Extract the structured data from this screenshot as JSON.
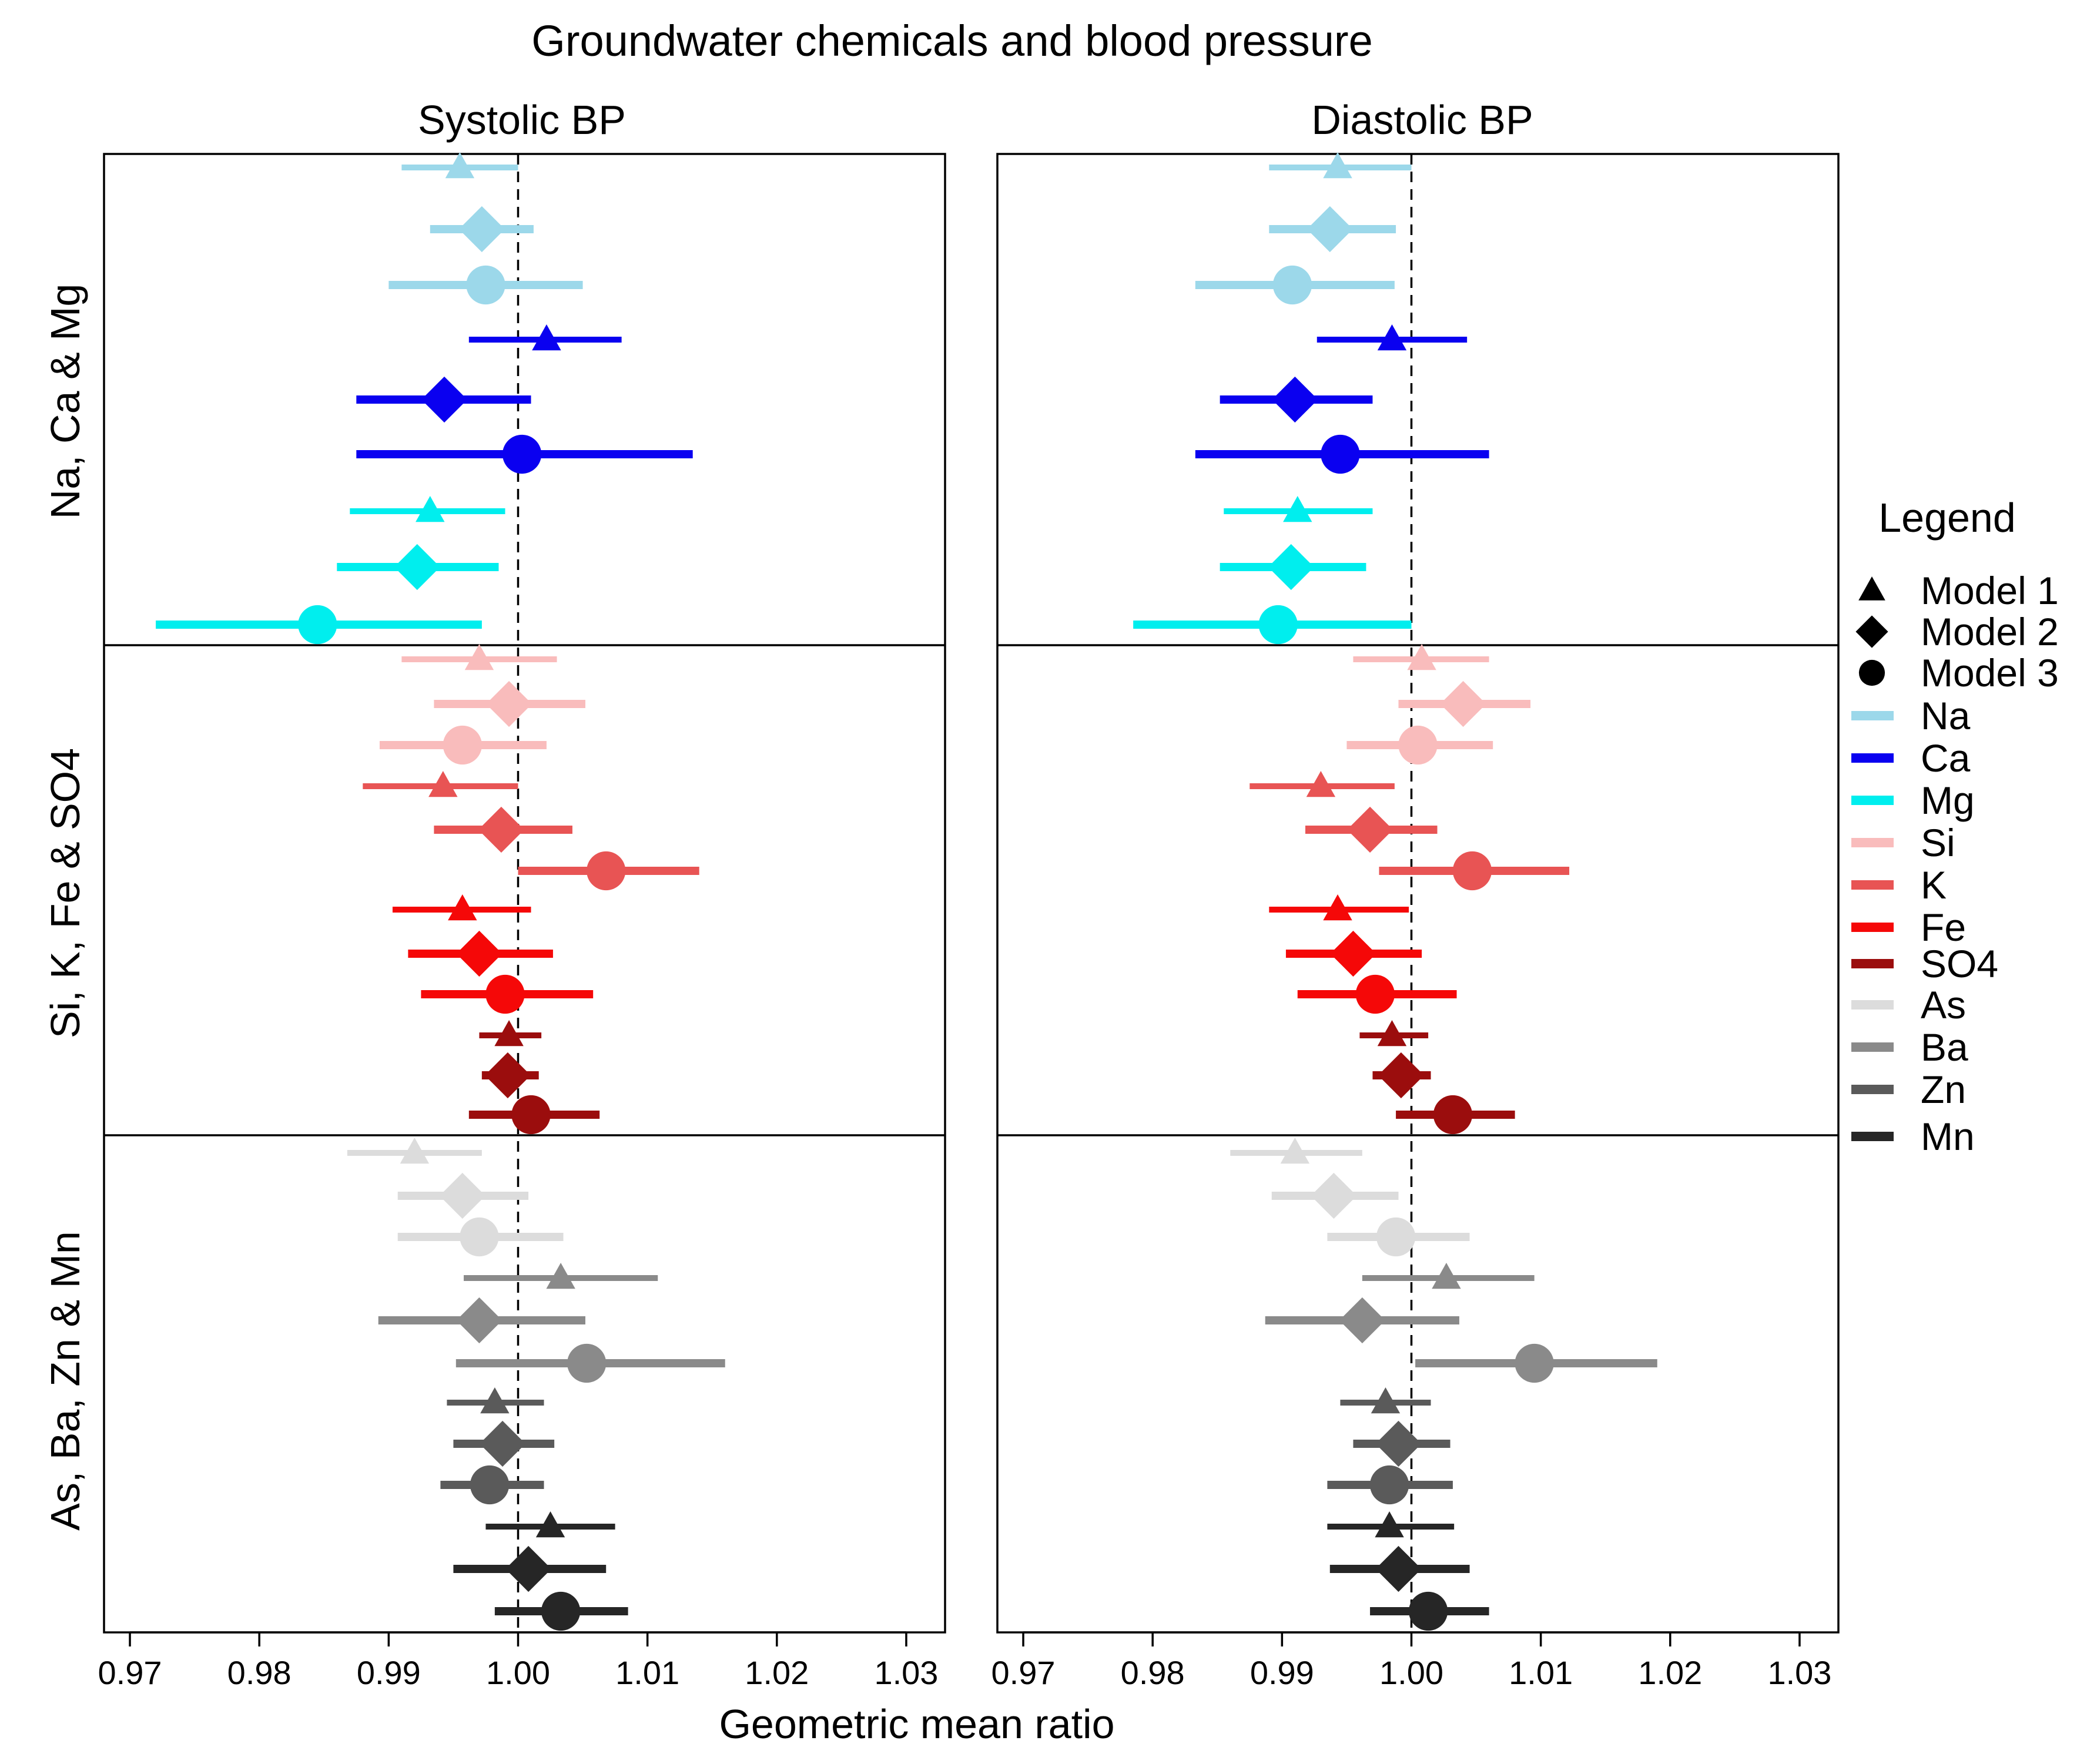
{
  "chart_data": {
    "type": "forest",
    "title": "Groundwater chemicals and blood pressure",
    "xlabel": "Geometric mean ratio",
    "xlim": [
      0.968,
      1.033
    ],
    "ticks": [
      0.97,
      0.98,
      0.99,
      1.0,
      1.01,
      1.02,
      1.03
    ],
    "tick_labels": [
      "0.97",
      "0.98",
      "0.99",
      "1.00",
      "1.01",
      "1.02",
      "1.03"
    ],
    "reference_line": 1.0,
    "panels": [
      {
        "key": "systolic",
        "title": "Systolic BP"
      },
      {
        "key": "diastolic",
        "title": "Diastolic BP"
      }
    ],
    "groups": [
      {
        "label": "Na, Ca & Mg",
        "chemicals": [
          "Na",
          "Ca",
          "Mg"
        ]
      },
      {
        "label": "Si, K, Fe & SO4",
        "chemicals": [
          "Si",
          "K",
          "Fe",
          "SO4"
        ]
      },
      {
        "label": "As, Ba, Zn & Mn",
        "chemicals": [
          "As",
          "Ba",
          "Zn",
          "Mn"
        ]
      }
    ],
    "chemicals": [
      {
        "name": "Na",
        "color": "#9cd8ea"
      },
      {
        "name": "Ca",
        "color": "#0a00f0"
      },
      {
        "name": "Mg",
        "color": "#00eeee"
      },
      {
        "name": "Si",
        "color": "#f9bcbc"
      },
      {
        "name": "K",
        "color": "#e85454"
      },
      {
        "name": "Fe",
        "color": "#f50808"
      },
      {
        "name": "SO4",
        "color": "#9b0d0d"
      },
      {
        "name": "As",
        "color": "#dcdcdc"
      },
      {
        "name": "Ba",
        "color": "#8a8a8a"
      },
      {
        "name": "Zn",
        "color": "#5a5a5a"
      },
      {
        "name": "Mn",
        "color": "#262626"
      }
    ],
    "models": [
      {
        "name": "Model 1",
        "shape": "triangle"
      },
      {
        "name": "Model 2",
        "shape": "diamond"
      },
      {
        "name": "Model 3",
        "shape": "circle"
      }
    ],
    "legend": {
      "title": "Legend",
      "position": "right"
    },
    "series": {
      "systolic": [
        {
          "chem": "Na",
          "model": 1,
          "est": 0.9955,
          "lo": 0.991,
          "hi": 1.0
        },
        {
          "chem": "Na",
          "model": 2,
          "est": 0.9972,
          "lo": 0.9932,
          "hi": 1.0012
        },
        {
          "chem": "Na",
          "model": 3,
          "est": 0.9975,
          "lo": 0.99,
          "hi": 1.005
        },
        {
          "chem": "Ca",
          "model": 1,
          "est": 1.0022,
          "lo": 0.9962,
          "hi": 1.008
        },
        {
          "chem": "Ca",
          "model": 2,
          "est": 0.9943,
          "lo": 0.9875,
          "hi": 1.001
        },
        {
          "chem": "Ca",
          "model": 3,
          "est": 1.0003,
          "lo": 0.9875,
          "hi": 1.0135
        },
        {
          "chem": "Mg",
          "model": 1,
          "est": 0.9932,
          "lo": 0.987,
          "hi": 0.999
        },
        {
          "chem": "Mg",
          "model": 2,
          "est": 0.9922,
          "lo": 0.986,
          "hi": 0.9985
        },
        {
          "chem": "Mg",
          "model": 3,
          "est": 0.9845,
          "lo": 0.972,
          "hi": 0.9972
        },
        {
          "chem": "Si",
          "model": 1,
          "est": 0.997,
          "lo": 0.991,
          "hi": 1.003
        },
        {
          "chem": "Si",
          "model": 2,
          "est": 0.9993,
          "lo": 0.9935,
          "hi": 1.0052
        },
        {
          "chem": "Si",
          "model": 3,
          "est": 0.9957,
          "lo": 0.9893,
          "hi": 1.0022
        },
        {
          "chem": "K",
          "model": 1,
          "est": 0.9942,
          "lo": 0.988,
          "hi": 1.0
        },
        {
          "chem": "K",
          "model": 2,
          "est": 0.9987,
          "lo": 0.9935,
          "hi": 1.0042
        },
        {
          "chem": "K",
          "model": 3,
          "est": 1.0068,
          "lo": 1.0,
          "hi": 1.014
        },
        {
          "chem": "Fe",
          "model": 1,
          "est": 0.9957,
          "lo": 0.9903,
          "hi": 1.001
        },
        {
          "chem": "Fe",
          "model": 2,
          "est": 0.997,
          "lo": 0.9915,
          "hi": 1.0027
        },
        {
          "chem": "Fe",
          "model": 3,
          "est": 0.999,
          "lo": 0.9925,
          "hi": 1.0058
        },
        {
          "chem": "SO4",
          "model": 1,
          "est": 0.9993,
          "lo": 0.997,
          "hi": 1.0018
        },
        {
          "chem": "SO4",
          "model": 2,
          "est": 0.9992,
          "lo": 0.9972,
          "hi": 1.0016
        },
        {
          "chem": "SO4",
          "model": 3,
          "est": 1.001,
          "lo": 0.9962,
          "hi": 1.0063
        },
        {
          "chem": "As",
          "model": 1,
          "est": 0.992,
          "lo": 0.9868,
          "hi": 0.9972
        },
        {
          "chem": "As",
          "model": 2,
          "est": 0.9957,
          "lo": 0.9907,
          "hi": 1.0008
        },
        {
          "chem": "As",
          "model": 3,
          "est": 0.997,
          "lo": 0.9907,
          "hi": 1.0035
        },
        {
          "chem": "Ba",
          "model": 1,
          "est": 1.0033,
          "lo": 0.9958,
          "hi": 1.0108
        },
        {
          "chem": "Ba",
          "model": 2,
          "est": 0.997,
          "lo": 0.9892,
          "hi": 1.0052
        },
        {
          "chem": "Ba",
          "model": 3,
          "est": 1.0053,
          "lo": 0.9952,
          "hi": 1.016
        },
        {
          "chem": "Zn",
          "model": 1,
          "est": 0.9982,
          "lo": 0.9945,
          "hi": 1.002
        },
        {
          "chem": "Zn",
          "model": 2,
          "est": 0.9988,
          "lo": 0.995,
          "hi": 1.0028
        },
        {
          "chem": "Zn",
          "model": 3,
          "est": 0.9978,
          "lo": 0.994,
          "hi": 1.002
        },
        {
          "chem": "Mn",
          "model": 1,
          "est": 1.0025,
          "lo": 0.9975,
          "hi": 1.0075
        },
        {
          "chem": "Mn",
          "model": 2,
          "est": 1.0008,
          "lo": 0.995,
          "hi": 1.0068
        },
        {
          "chem": "Mn",
          "model": 3,
          "est": 1.0033,
          "lo": 0.9982,
          "hi": 1.0085
        }
      ],
      "diastolic": [
        {
          "chem": "Na",
          "model": 1,
          "est": 0.9943,
          "lo": 0.989,
          "hi": 1.0
        },
        {
          "chem": "Na",
          "model": 2,
          "est": 0.9937,
          "lo": 0.989,
          "hi": 0.9988
        },
        {
          "chem": "Na",
          "model": 3,
          "est": 0.9908,
          "lo": 0.9833,
          "hi": 0.9987
        },
        {
          "chem": "Ca",
          "model": 1,
          "est": 0.9985,
          "lo": 0.9927,
          "hi": 1.0043
        },
        {
          "chem": "Ca",
          "model": 2,
          "est": 0.991,
          "lo": 0.9852,
          "hi": 0.997
        },
        {
          "chem": "Ca",
          "model": 3,
          "est": 0.9945,
          "lo": 0.9833,
          "hi": 1.006
        },
        {
          "chem": "Mg",
          "model": 1,
          "est": 0.9912,
          "lo": 0.9855,
          "hi": 0.997
        },
        {
          "chem": "Mg",
          "model": 2,
          "est": 0.9907,
          "lo": 0.9852,
          "hi": 0.9965
        },
        {
          "chem": "Mg",
          "model": 3,
          "est": 0.9897,
          "lo": 0.9785,
          "hi": 1.0
        },
        {
          "chem": "Si",
          "model": 1,
          "est": 1.0008,
          "lo": 0.9955,
          "hi": 1.006
        },
        {
          "chem": "Si",
          "model": 2,
          "est": 1.004,
          "lo": 0.999,
          "hi": 1.0092
        },
        {
          "chem": "Si",
          "model": 3,
          "est": 1.0005,
          "lo": 0.995,
          "hi": 1.0063
        },
        {
          "chem": "K",
          "model": 1,
          "est": 0.993,
          "lo": 0.9875,
          "hi": 0.9987
        },
        {
          "chem": "K",
          "model": 2,
          "est": 0.9968,
          "lo": 0.9918,
          "hi": 1.002
        },
        {
          "chem": "K",
          "model": 3,
          "est": 1.0047,
          "lo": 0.9975,
          "hi": 1.0122
        },
        {
          "chem": "Fe",
          "model": 1,
          "est": 0.9943,
          "lo": 0.989,
          "hi": 0.9998
        },
        {
          "chem": "Fe",
          "model": 2,
          "est": 0.9955,
          "lo": 0.9903,
          "hi": 1.0008
        },
        {
          "chem": "Fe",
          "model": 3,
          "est": 0.9972,
          "lo": 0.9912,
          "hi": 1.0035
        },
        {
          "chem": "SO4",
          "model": 1,
          "est": 0.9985,
          "lo": 0.996,
          "hi": 1.0013
        },
        {
          "chem": "SO4",
          "model": 2,
          "est": 0.9992,
          "lo": 0.997,
          "hi": 1.0015
        },
        {
          "chem": "SO4",
          "model": 3,
          "est": 1.0032,
          "lo": 0.9988,
          "hi": 1.008
        },
        {
          "chem": "As",
          "model": 1,
          "est": 0.991,
          "lo": 0.986,
          "hi": 0.9962
        },
        {
          "chem": "As",
          "model": 2,
          "est": 0.994,
          "lo": 0.9892,
          "hi": 0.999
        },
        {
          "chem": "As",
          "model": 3,
          "est": 0.9988,
          "lo": 0.9935,
          "hi": 1.0045
        },
        {
          "chem": "Ba",
          "model": 1,
          "est": 1.0027,
          "lo": 0.9962,
          "hi": 1.0095
        },
        {
          "chem": "Ba",
          "model": 2,
          "est": 0.9962,
          "lo": 0.9887,
          "hi": 1.0037
        },
        {
          "chem": "Ba",
          "model": 3,
          "est": 1.0095,
          "lo": 1.0003,
          "hi": 1.019
        },
        {
          "chem": "Zn",
          "model": 1,
          "est": 0.998,
          "lo": 0.9945,
          "hi": 1.0015
        },
        {
          "chem": "Zn",
          "model": 2,
          "est": 0.999,
          "lo": 0.9955,
          "hi": 1.003
        },
        {
          "chem": "Zn",
          "model": 3,
          "est": 0.9983,
          "lo": 0.9935,
          "hi": 1.0032
        },
        {
          "chem": "Mn",
          "model": 1,
          "est": 0.9983,
          "lo": 0.9935,
          "hi": 1.0033
        },
        {
          "chem": "Mn",
          "model": 2,
          "est": 0.999,
          "lo": 0.9937,
          "hi": 1.0045
        },
        {
          "chem": "Mn",
          "model": 3,
          "est": 1.0013,
          "lo": 0.9968,
          "hi": 1.006
        }
      ]
    }
  }
}
